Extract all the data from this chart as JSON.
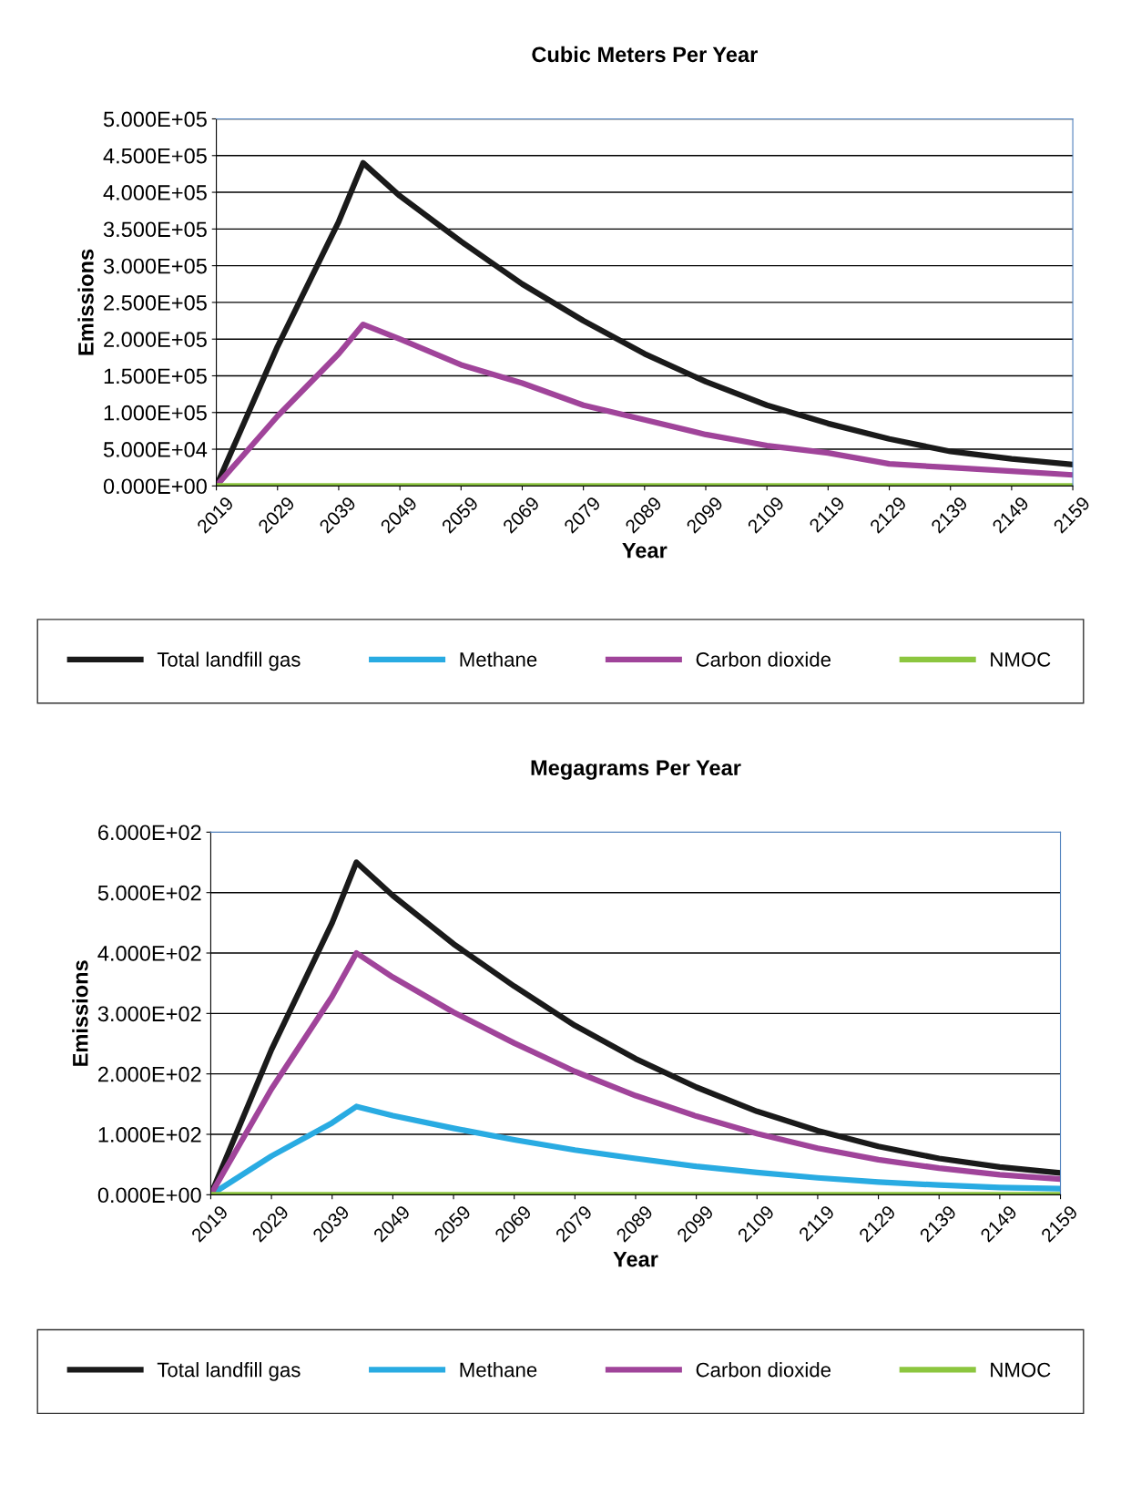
{
  "chart_data": [
    {
      "type": "line",
      "title": "Cubic Meters Per Year",
      "xlabel": "Year",
      "ylabel": "Emissions",
      "x": [
        2019,
        2029,
        2039,
        2043,
        2049,
        2059,
        2069,
        2079,
        2089,
        2099,
        2109,
        2119,
        2129,
        2139,
        2149,
        2159
      ],
      "series": [
        {
          "name": "Total landfill gas",
          "color": "#1a1a1a",
          "values": [
            0,
            190000,
            360000,
            440000,
            395000,
            333000,
            275000,
            225000,
            180000,
            142000,
            110000,
            85000,
            64000,
            47000,
            37000,
            29000
          ]
        },
        {
          "name": "Methane",
          "color": "#29abe2",
          "values": [
            null,
            null,
            null,
            null,
            null,
            null,
            null,
            null,
            null,
            null,
            null,
            null,
            null,
            null,
            null,
            null
          ]
        },
        {
          "name": "Carbon dioxide",
          "color": "#a0449a",
          "values": [
            0,
            95000,
            180000,
            220000,
            200000,
            165000,
            140000,
            110000,
            90000,
            70000,
            55000,
            45000,
            30000,
            25000,
            20000,
            15000
          ]
        },
        {
          "name": "NMOC",
          "color": "#8cc63f",
          "values": [
            0,
            0,
            0,
            0,
            0,
            0,
            0,
            0,
            0,
            0,
            0,
            0,
            0,
            0,
            0,
            0
          ]
        }
      ],
      "xlim": [
        2019,
        2159
      ],
      "xticks": [
        2019,
        2029,
        2039,
        2049,
        2059,
        2069,
        2079,
        2089,
        2099,
        2109,
        2119,
        2129,
        2139,
        2149,
        2159
      ],
      "ylim": [
        0,
        500000
      ],
      "yticks": [
        {
          "value": 0,
          "label": "0.000E+00"
        },
        {
          "value": 50000,
          "label": "5.000E+04"
        },
        {
          "value": 100000,
          "label": "1.000E+05"
        },
        {
          "value": 150000,
          "label": "1.500E+05"
        },
        {
          "value": 200000,
          "label": "2.000E+05"
        },
        {
          "value": 250000,
          "label": "2.500E+05"
        },
        {
          "value": 300000,
          "label": "3.000E+05"
        },
        {
          "value": 350000,
          "label": "3.500E+05"
        },
        {
          "value": 400000,
          "label": "4.000E+05"
        },
        {
          "value": 450000,
          "label": "4.500E+05"
        },
        {
          "value": 500000,
          "label": "5.000E+05"
        }
      ],
      "grid": "y",
      "legend": "bottom",
      "marker": "none",
      "line_style": "solid"
    },
    {
      "type": "line",
      "title": "Megagrams Per Year",
      "xlabel": "Year",
      "ylabel": "Emissions",
      "x": [
        2019,
        2029,
        2039,
        2043,
        2049,
        2059,
        2069,
        2079,
        2089,
        2099,
        2109,
        2119,
        2129,
        2139,
        2149,
        2159
      ],
      "series": [
        {
          "name": "Total landfill gas",
          "color": "#1a1a1a",
          "values": [
            0,
            240,
            450,
            550,
            495,
            415,
            345,
            280,
            225,
            178,
            138,
            106,
            80,
            60,
            46,
            36
          ]
        },
        {
          "name": "Methane",
          "color": "#29abe2",
          "values": [
            0,
            64,
            119,
            146,
            131,
            110,
            91,
            74,
            60,
            47,
            37,
            28,
            21,
            16,
            12,
            10
          ]
        },
        {
          "name": "Carbon dioxide",
          "color": "#a0449a",
          "values": [
            0,
            175,
            328,
            400,
            360,
            302,
            251,
            204,
            164,
            130,
            101,
            77,
            58,
            44,
            33,
            26
          ]
        },
        {
          "name": "NMOC",
          "color": "#8cc63f",
          "values": [
            0,
            0,
            0,
            0,
            0,
            0,
            0,
            0,
            0,
            0,
            0,
            0,
            0,
            0,
            0,
            0
          ]
        }
      ],
      "xlim": [
        2019,
        2159
      ],
      "xticks": [
        2019,
        2029,
        2039,
        2049,
        2059,
        2069,
        2079,
        2089,
        2099,
        2109,
        2119,
        2129,
        2139,
        2149,
        2159
      ],
      "ylim": [
        0,
        600
      ],
      "yticks": [
        {
          "value": 0,
          "label": "0.000E+00"
        },
        {
          "value": 100,
          "label": "1.000E+02"
        },
        {
          "value": 200,
          "label": "2.000E+02"
        },
        {
          "value": 300,
          "label": "3.000E+02"
        },
        {
          "value": 400,
          "label": "4.000E+02"
        },
        {
          "value": 500,
          "label": "5.000E+02"
        },
        {
          "value": 600,
          "label": "6.000E+02"
        }
      ],
      "grid": "y",
      "legend": "bottom",
      "marker": "none",
      "line_style": "solid"
    }
  ]
}
